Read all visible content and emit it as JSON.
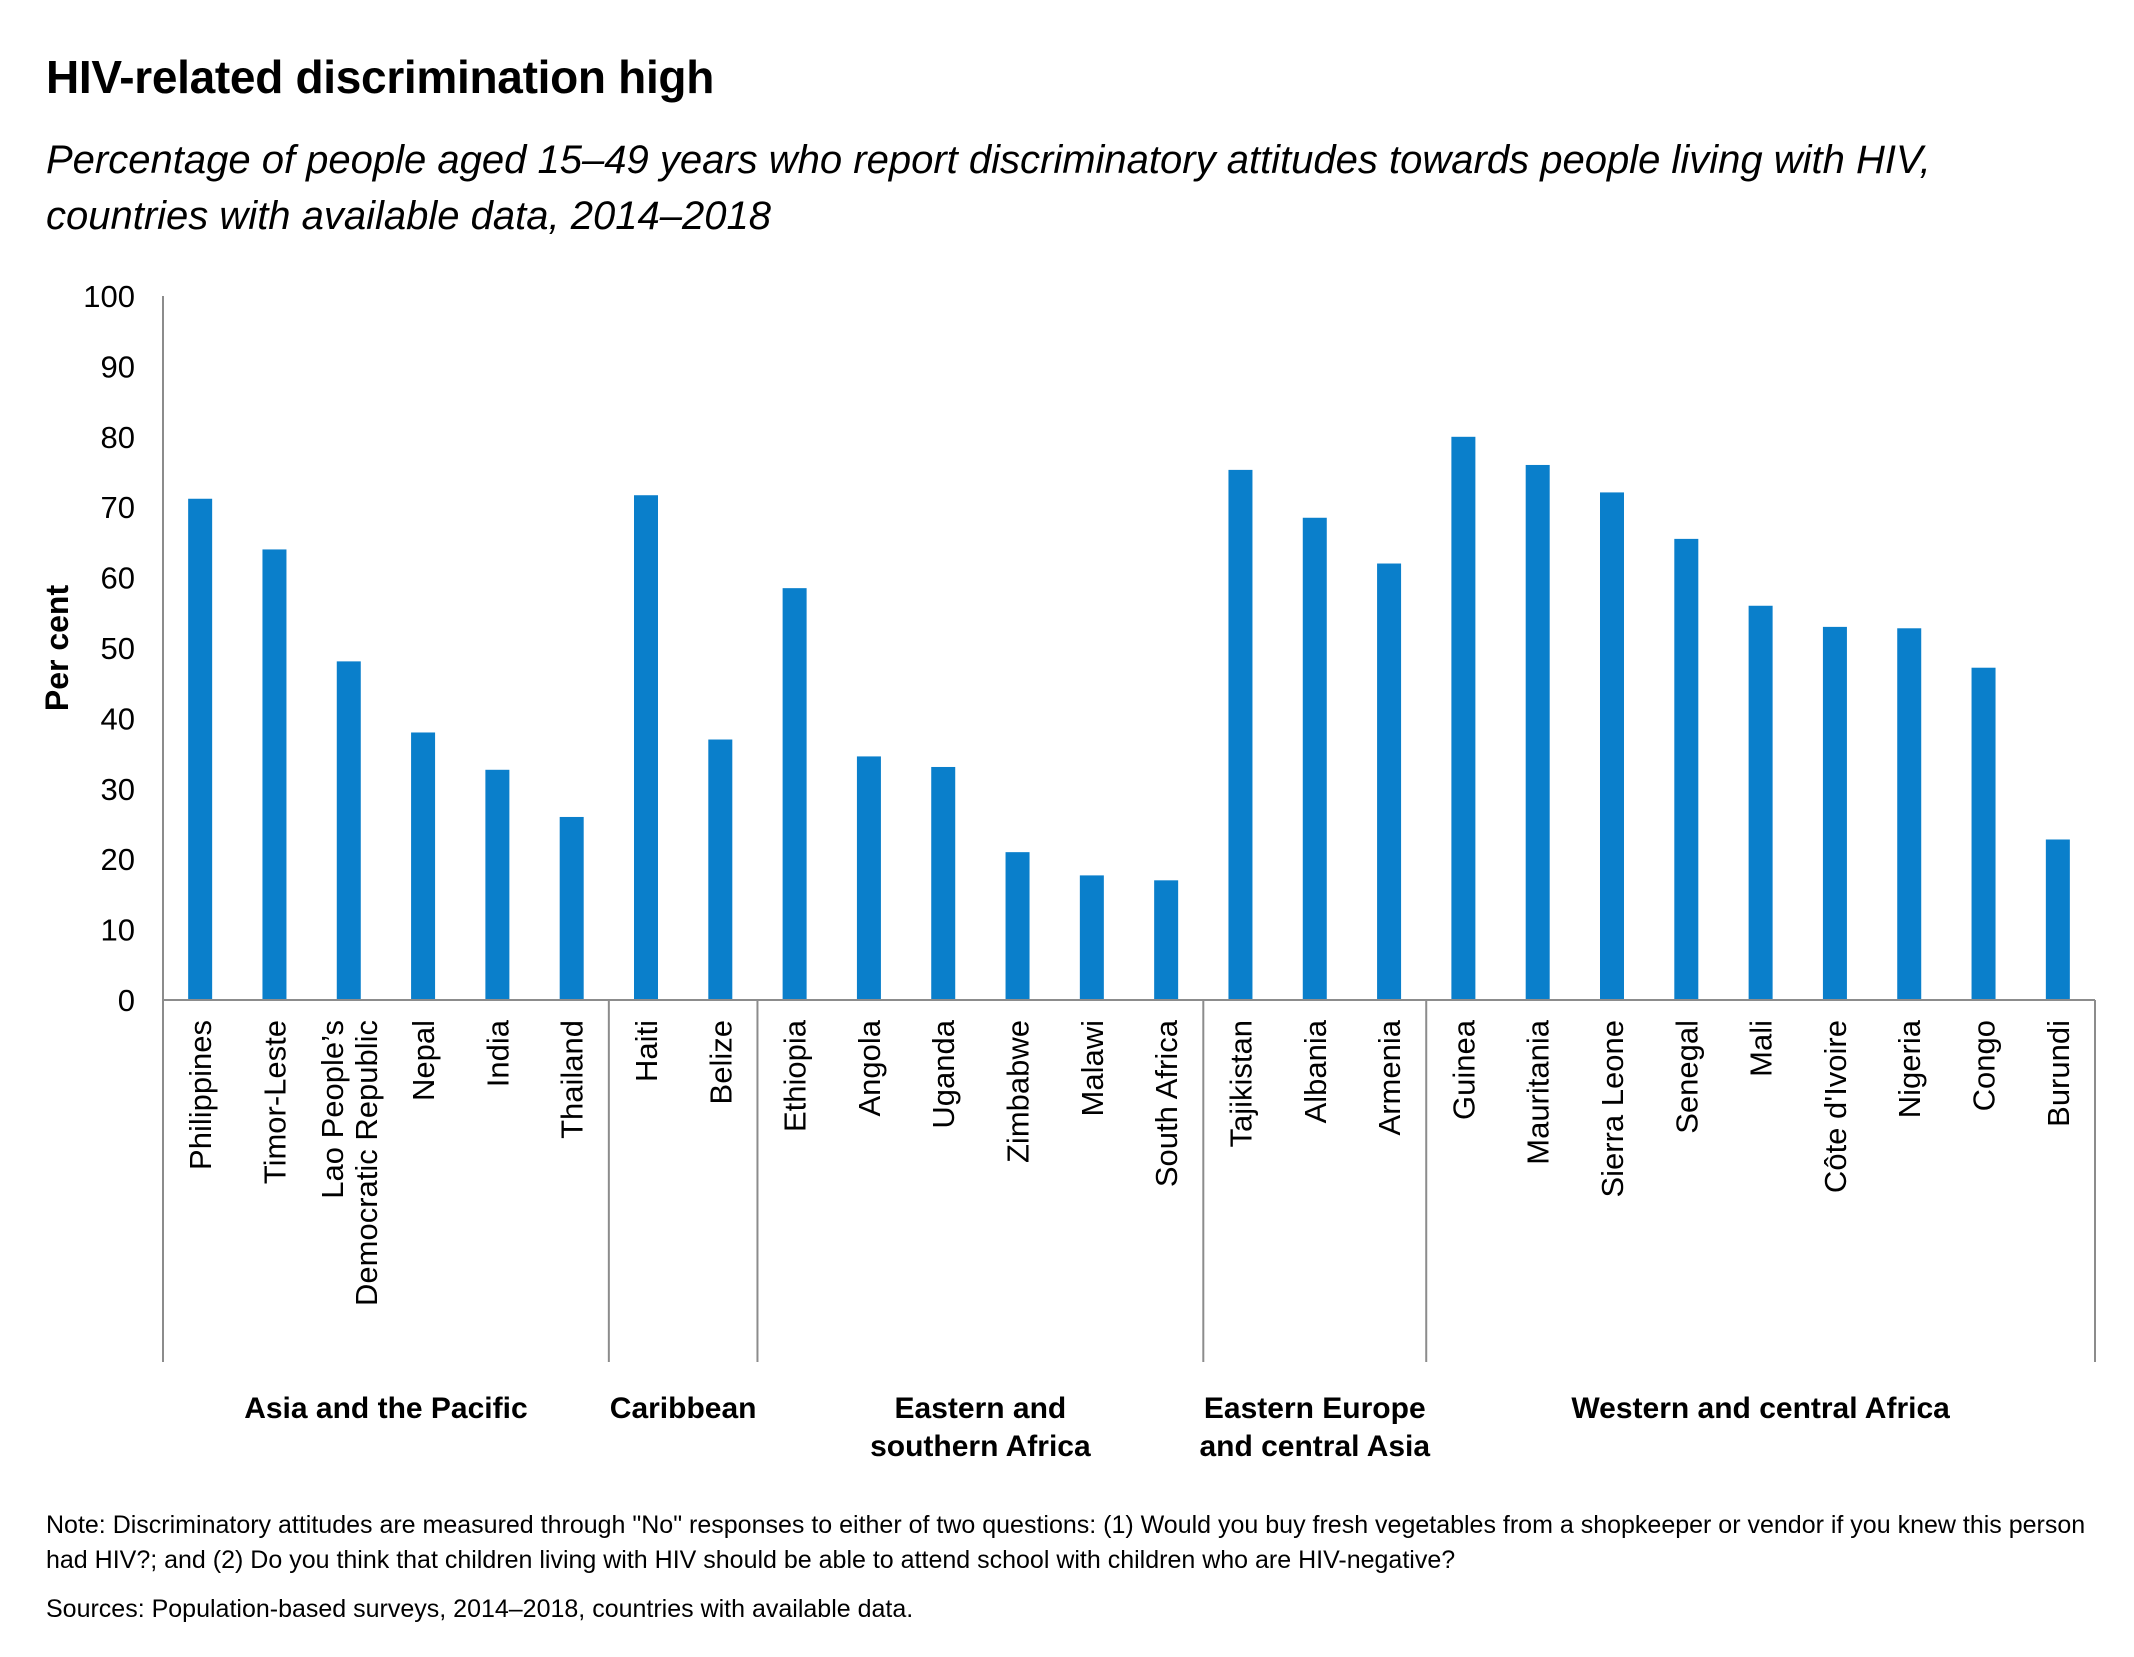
{
  "chart_data": {
    "type": "bar",
    "title": "HIV-related discrimination high",
    "subtitle": "Percentage of people aged 15–49 years who report discriminatory attitudes towards people living with HIV, countries with available data, 2014–2018",
    "ylabel": "Per cent",
    "xlabel": "",
    "ylim": [
      0,
      100
    ],
    "yticks": [
      0,
      10,
      20,
      30,
      40,
      50,
      60,
      70,
      80,
      90,
      100
    ],
    "grid": false,
    "bar_color": "#0a7fcb",
    "categories": [
      "Philippines",
      "Timor-Leste",
      "Lao People’s Democratic Republic",
      "Nepal",
      "India",
      "Thailand",
      "Haiti",
      "Belize",
      "Ethiopia",
      "Angola",
      "Uganda",
      "Zimbabwe",
      "Malawi",
      "South Africa",
      "Tajikistan",
      "Albania",
      "Armenia",
      "Guinea",
      "Mauritania",
      "Sierra Leone",
      "Senegal",
      "Mali",
      "Côte d'Ivoire",
      "Nigeria",
      "Congo",
      "Burundi"
    ],
    "category_lines": [
      [
        "Philippines"
      ],
      [
        "Timor-Leste"
      ],
      [
        "Lao People’s",
        "Democratic Republic"
      ],
      [
        "Nepal"
      ],
      [
        "India"
      ],
      [
        "Thailand"
      ],
      [
        "Haiti"
      ],
      [
        "Belize"
      ],
      [
        "Ethiopia"
      ],
      [
        "Angola"
      ],
      [
        "Uganda"
      ],
      [
        "Zimbabwe"
      ],
      [
        "Malawi"
      ],
      [
        "South Africa"
      ],
      [
        "Tajikistan"
      ],
      [
        "Albania"
      ],
      [
        "Armenia"
      ],
      [
        "Guinea"
      ],
      [
        "Mauritania"
      ],
      [
        "Sierra Leone"
      ],
      [
        "Senegal"
      ],
      [
        "Mali"
      ],
      [
        "Côte d'Ivoire"
      ],
      [
        "Nigeria"
      ],
      [
        "Congo"
      ],
      [
        "Burundi"
      ]
    ],
    "values": [
      71.2,
      64,
      48.1,
      38,
      32.7,
      26,
      71.7,
      37,
      58.5,
      34.6,
      33.1,
      21,
      17.7,
      17,
      75.3,
      68.5,
      62,
      80,
      76,
      72.1,
      65.5,
      56,
      53,
      52.8,
      47.2,
      22.8
    ],
    "groups": [
      {
        "lines": [
          "Asia and the Pacific"
        ],
        "count": 6
      },
      {
        "lines": [
          "Caribbean"
        ],
        "count": 2
      },
      {
        "lines": [
          "Eastern and",
          "southern Africa"
        ],
        "count": 6
      },
      {
        "lines": [
          "Eastern Europe",
          "and central Asia"
        ],
        "count": 3
      },
      {
        "lines": [
          "Western and central Africa"
        ],
        "count": 9
      }
    ]
  },
  "footer": {
    "note": "Note: Discriminatory attitudes are measured through \"No\" responses to either of two questions: (1) Would you buy fresh vegetables from a shopkeeper or vendor if you knew this person had HIV?; and (2) Do you think that children living with HIV should be able to attend school with children who are HIV-negative?",
    "sources": "Sources: Population-based surveys, 2014–2018, countries with available data."
  }
}
